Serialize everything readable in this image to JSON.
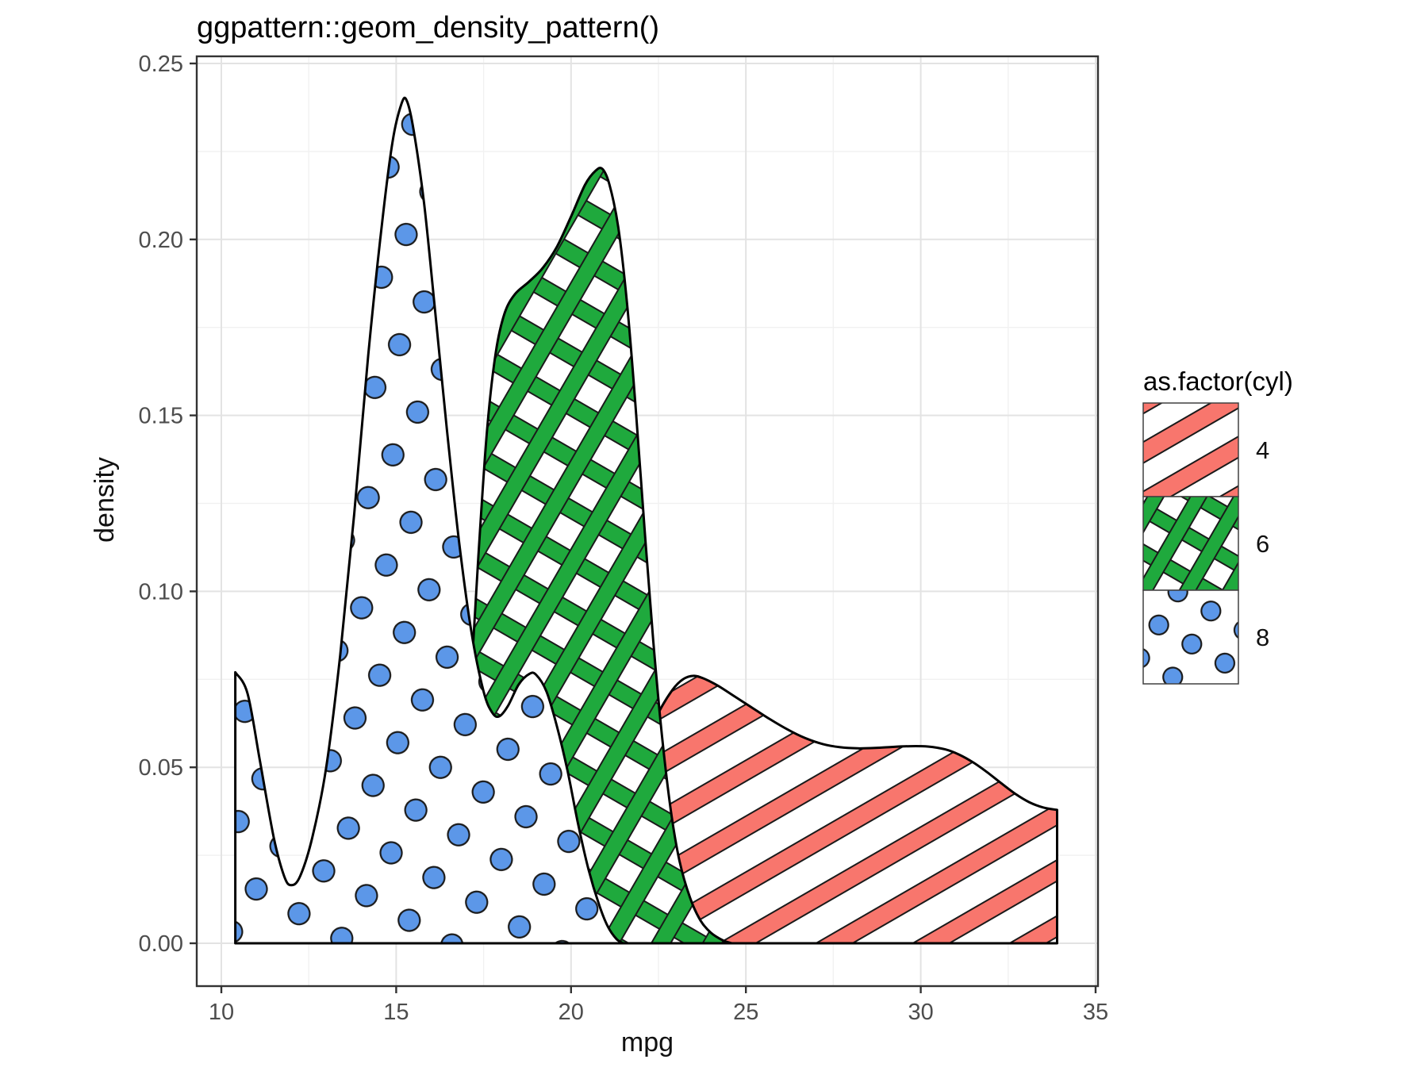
{
  "title": "ggpattern::geom_density_pattern()",
  "x_axis": {
    "label": "mpg",
    "major_ticks": [
      {
        "v": 10,
        "label": "10"
      },
      {
        "v": 15,
        "label": "15"
      },
      {
        "v": 20,
        "label": "20"
      },
      {
        "v": 25,
        "label": "25"
      },
      {
        "v": 30,
        "label": "30"
      },
      {
        "v": 35,
        "label": "35"
      }
    ],
    "minor_ticks": [
      12.5,
      17.5,
      22.5,
      27.5,
      32.5
    ]
  },
  "y_axis": {
    "label": "density",
    "major_ticks": [
      {
        "v": 0.0,
        "label": "0.00"
      },
      {
        "v": 0.05,
        "label": "0.05"
      },
      {
        "v": 0.1,
        "label": "0.10"
      },
      {
        "v": 0.15,
        "label": "0.15"
      },
      {
        "v": 0.2,
        "label": "0.20"
      },
      {
        "v": 0.25,
        "label": "0.25"
      }
    ],
    "minor_ticks": [
      0.025,
      0.075,
      0.125,
      0.175,
      0.225
    ]
  },
  "legend": {
    "title": "as.factor(cyl)",
    "entries": [
      {
        "label": "4",
        "pattern": "stripe"
      },
      {
        "label": "6",
        "pattern": "crosshatch"
      },
      {
        "label": "8",
        "pattern": "circle"
      }
    ]
  },
  "colors": {
    "cyl4": "#F8766D",
    "cyl6": "#1FA93D",
    "cyl8": "#5C97E8",
    "grid_major": "#E3E3E3",
    "grid_minor": "#F1F1F1"
  },
  "chart_data": {
    "type": "area",
    "title": "ggpattern::geom_density_pattern()",
    "xlabel": "mpg",
    "ylabel": "density",
    "xlim": [
      9.297,
      35.068
    ],
    "ylim": [
      -0.01217,
      0.25203
    ],
    "grid": true,
    "legend_position": "right",
    "series": [
      {
        "name": "4",
        "pattern": "stripe",
        "points": [
          [
            19.4,
            0.0
          ],
          [
            19.75,
            0.0035
          ],
          [
            20.1,
            0.0085
          ],
          [
            20.5,
            0.016
          ],
          [
            20.9,
            0.0255
          ],
          [
            21.3,
            0.036
          ],
          [
            21.7,
            0.0465
          ],
          [
            22.1,
            0.0565
          ],
          [
            22.5,
            0.0655
          ],
          [
            22.9,
            0.072
          ],
          [
            23.2,
            0.075
          ],
          [
            23.5,
            0.076
          ],
          [
            23.8,
            0.0752
          ],
          [
            24.2,
            0.0732
          ],
          [
            24.7,
            0.07
          ],
          [
            25.2,
            0.0668
          ],
          [
            25.7,
            0.0636
          ],
          [
            26.2,
            0.0607
          ],
          [
            26.7,
            0.0583
          ],
          [
            27.2,
            0.0566
          ],
          [
            27.7,
            0.0557
          ],
          [
            28.2,
            0.0554
          ],
          [
            28.7,
            0.0555
          ],
          [
            29.2,
            0.0558
          ],
          [
            29.7,
            0.056
          ],
          [
            30.2,
            0.0559
          ],
          [
            30.7,
            0.0551
          ],
          [
            31.1,
            0.0536
          ],
          [
            31.5,
            0.0514
          ],
          [
            31.9,
            0.0486
          ],
          [
            32.3,
            0.0455
          ],
          [
            32.7,
            0.0425
          ],
          [
            33.1,
            0.0401
          ],
          [
            33.5,
            0.0386
          ],
          [
            33.9,
            0.0379
          ]
        ]
      },
      {
        "name": "6",
        "pattern": "crosshatch",
        "points": [
          [
            16.35,
            0.0
          ],
          [
            16.6,
            0.01
          ],
          [
            16.85,
            0.032
          ],
          [
            17.1,
            0.068
          ],
          [
            17.35,
            0.11
          ],
          [
            17.6,
            0.146
          ],
          [
            17.85,
            0.168
          ],
          [
            18.1,
            0.179
          ],
          [
            18.4,
            0.1845
          ],
          [
            18.8,
            0.188
          ],
          [
            19.2,
            0.192
          ],
          [
            19.6,
            0.198
          ],
          [
            20.0,
            0.2065
          ],
          [
            20.4,
            0.2155
          ],
          [
            20.7,
            0.2195
          ],
          [
            20.9,
            0.22
          ],
          [
            21.1,
            0.2155
          ],
          [
            21.35,
            0.2035
          ],
          [
            21.6,
            0.182
          ],
          [
            21.85,
            0.152
          ],
          [
            22.1,
            0.118
          ],
          [
            22.35,
            0.086
          ],
          [
            22.6,
            0.059
          ],
          [
            22.85,
            0.038
          ],
          [
            23.1,
            0.0235
          ],
          [
            23.4,
            0.013
          ],
          [
            23.7,
            0.0065
          ],
          [
            24.0,
            0.003
          ],
          [
            24.35,
            0.0008
          ],
          [
            24.6,
            0.0
          ]
        ]
      },
      {
        "name": "8",
        "pattern": "circle",
        "points": [
          [
            10.4,
            0.077
          ],
          [
            10.75,
            0.071
          ],
          [
            11.1,
            0.052
          ],
          [
            11.5,
            0.03
          ],
          [
            11.8,
            0.019
          ],
          [
            12.0,
            0.0165
          ],
          [
            12.25,
            0.019
          ],
          [
            12.6,
            0.03
          ],
          [
            13.0,
            0.05
          ],
          [
            13.4,
            0.082
          ],
          [
            13.8,
            0.122
          ],
          [
            14.2,
            0.167
          ],
          [
            14.6,
            0.205
          ],
          [
            14.9,
            0.228
          ],
          [
            15.15,
            0.2385
          ],
          [
            15.3,
            0.2395
          ],
          [
            15.5,
            0.231
          ],
          [
            15.8,
            0.21
          ],
          [
            16.1,
            0.181
          ],
          [
            16.45,
            0.146
          ],
          [
            16.8,
            0.114
          ],
          [
            17.15,
            0.0885
          ],
          [
            17.5,
            0.0715
          ],
          [
            17.75,
            0.0655
          ],
          [
            17.95,
            0.0645
          ],
          [
            18.2,
            0.0675
          ],
          [
            18.5,
            0.0735
          ],
          [
            18.8,
            0.0765
          ],
          [
            19.0,
            0.0763
          ],
          [
            19.3,
            0.0715
          ],
          [
            19.6,
            0.0615
          ],
          [
            19.9,
            0.049
          ],
          [
            20.2,
            0.034
          ],
          [
            20.5,
            0.021
          ],
          [
            20.8,
            0.011
          ],
          [
            21.05,
            0.0048
          ],
          [
            21.3,
            0.0012
          ],
          [
            21.5,
            0.0
          ]
        ]
      }
    ]
  }
}
